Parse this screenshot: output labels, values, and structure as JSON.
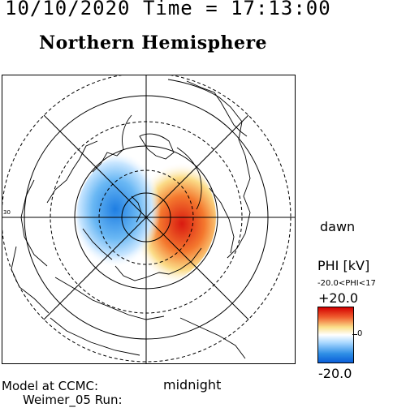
{
  "header": {
    "datetime": "10/10/2020 Time = 17:13:00",
    "hemisphere": "Northern Hemisphere"
  },
  "map": {
    "label_dawn": "dawn",
    "label_midnight": "midnight",
    "latitude_label": "30"
  },
  "footer": {
    "model_line1": "Model at CCMC:",
    "model_line2": "Weimer_05 Run:"
  },
  "colorbar": {
    "title": "PHI [kV]",
    "range_text": "-20.0<PHI<17",
    "max_label": "+20.0",
    "mid_label": "0",
    "min_label": "-20.0",
    "max_value": 20.0,
    "min_value": -20.0,
    "colors": {
      "positive": "#d40000",
      "zero": "#ffffff",
      "negative": "#0a5ed8"
    }
  }
}
